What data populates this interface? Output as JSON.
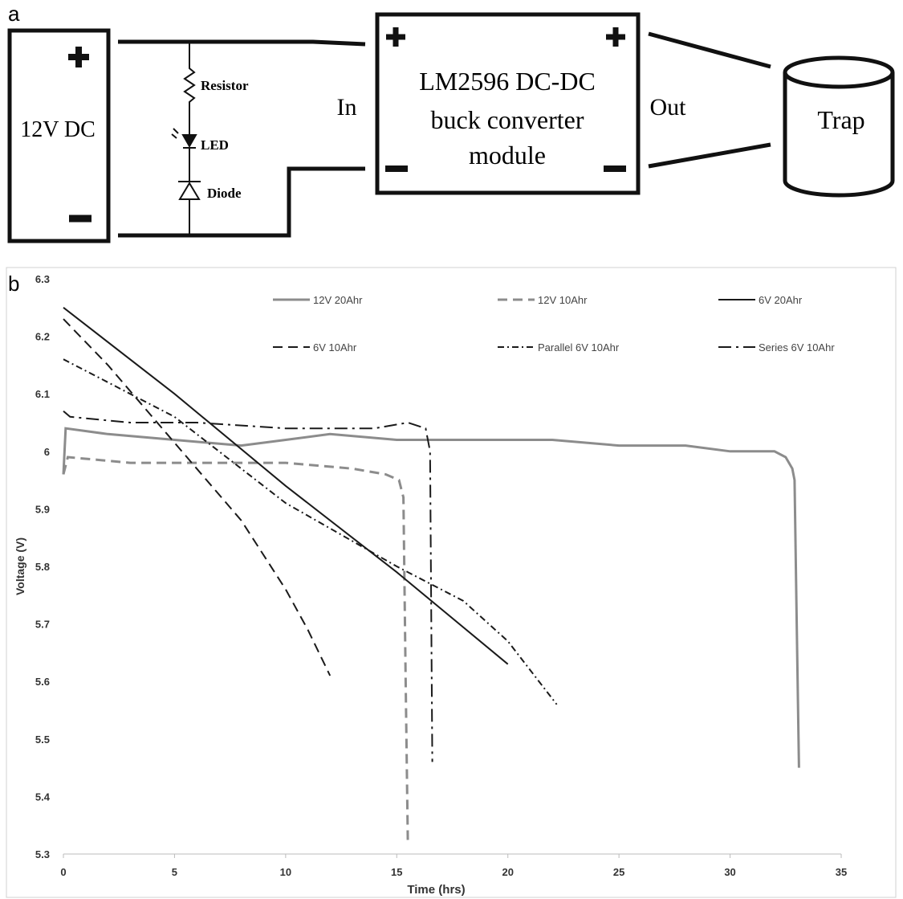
{
  "panel_a": {
    "label": "a",
    "battery": "12V DC",
    "resistor": "Resistor",
    "led": "LED",
    "diode": "Diode",
    "input": "In",
    "converter": [
      "LM2596 DC-DC",
      "buck converter",
      "module"
    ],
    "output": "Out",
    "load": "Trap"
  },
  "panel_b_label": "b",
  "chart_data": {
    "type": "line",
    "x_label": "Time (hrs)",
    "y_label": "Voltage (V)",
    "xlim": [
      0,
      35
    ],
    "xticks": [
      0,
      5,
      10,
      15,
      20,
      25,
      30,
      35
    ],
    "ylim": [
      5.3,
      6.3
    ],
    "yticks": [
      5.3,
      5.4,
      5.5,
      5.6,
      5.7,
      5.8,
      5.9,
      6,
      6.1,
      6.2,
      6.3
    ],
    "grid": false,
    "series": [
      {
        "name": "12V 20Ahr",
        "color": "#8c8c8c",
        "linestyle": "solid",
        "linewidth": 3,
        "x": [
          0,
          0.1,
          2,
          5,
          8,
          10,
          12,
          15,
          18,
          20,
          22,
          25,
          28,
          30,
          31,
          32,
          32.5,
          32.8,
          32.9,
          33.0,
          33.1
        ],
        "values": [
          5.96,
          6.04,
          6.03,
          6.02,
          6.01,
          6.02,
          6.03,
          6.02,
          6.02,
          6.02,
          6.02,
          6.01,
          6.01,
          6.0,
          6.0,
          6.0,
          5.99,
          5.97,
          5.95,
          5.7,
          5.45
        ]
      },
      {
        "name": "12V 10Ahr",
        "color": "#8c8c8c",
        "linestyle": "dashed",
        "linewidth": 3,
        "x": [
          0,
          0.2,
          3,
          6,
          10,
          13,
          14.5,
          15.1,
          15.3,
          15.4,
          15.5
        ],
        "values": [
          5.96,
          5.99,
          5.98,
          5.98,
          5.98,
          5.97,
          5.96,
          5.95,
          5.92,
          5.6,
          5.32
        ]
      },
      {
        "name": "6V 20Ahr",
        "color": "#1a1a1a",
        "linestyle": "solid",
        "linewidth": 2,
        "x": [
          0,
          5,
          10,
          15,
          20
        ],
        "values": [
          6.25,
          6.1,
          5.94,
          5.79,
          5.63
        ]
      },
      {
        "name": "6V 10Ahr",
        "color": "#1a1a1a",
        "linestyle": "dashed",
        "linewidth": 2,
        "x": [
          0,
          2,
          4,
          6,
          8,
          10,
          11,
          12
        ],
        "values": [
          6.23,
          6.15,
          6.06,
          5.97,
          5.88,
          5.76,
          5.69,
          5.61
        ]
      },
      {
        "name": "Parallel 6V 10Ahr",
        "color": "#1a1a1a",
        "linestyle": "dashdotfine",
        "linewidth": 2,
        "x": [
          0,
          3,
          5,
          7,
          10,
          15,
          18,
          20,
          22.2
        ],
        "values": [
          6.16,
          6.1,
          6.06,
          6.0,
          5.91,
          5.8,
          5.74,
          5.67,
          5.56
        ]
      },
      {
        "name": "Series 6V 10Ahr",
        "color": "#1a1a1a",
        "linestyle": "dashdot",
        "linewidth": 2,
        "x": [
          0,
          0.3,
          3,
          6,
          10,
          14,
          15.5,
          16.3,
          16.5,
          16.6
        ],
        "values": [
          6.07,
          6.06,
          6.05,
          6.05,
          6.04,
          6.04,
          6.05,
          6.04,
          6.0,
          5.46
        ]
      }
    ]
  }
}
